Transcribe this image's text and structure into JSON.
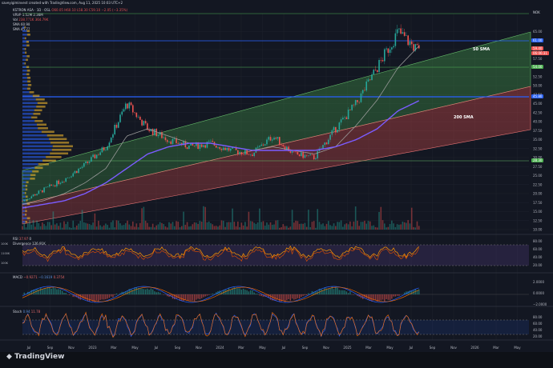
{
  "header": {
    "credit": "saveyigiminvest created with TradingView.com, Aug 11, 2025 10:03 UTC+2",
    "symbol_line": "KSTRON ASA · 1D · OSL",
    "ohlc_line": "O60.05 H60.10 L58.30 C59.10 −2.05 (−3.35%)",
    "vrvp": "VRVP",
    "vrvp_vals": "1.52M 2.36M",
    "vol": "Vol",
    "vol_vals": "238.771K 364.79K",
    "sma": "SMA",
    "sma_val": "60.98",
    "sma2": "SMA",
    "sma2_val": "45.77",
    "currency": "NOK"
  },
  "annotations": {
    "sma50": "50 SMA",
    "sma200": "200 SMA"
  },
  "price_labels": {
    "current": "59.40",
    "current_sub": "06:06:31",
    "line1": "61.00",
    "line2": "54.00",
    "line3": "45.80",
    "line4": "28.30",
    "nok_badge": "NOK"
  },
  "price_axis": [
    "65.00",
    "62.50",
    "60.00",
    "57.50",
    "55.00",
    "52.50",
    "50.00",
    "47.50",
    "45.00",
    "42.50",
    "40.00",
    "37.50",
    "35.00",
    "32.50",
    "30.00",
    "27.50",
    "25.00",
    "22.50",
    "20.00",
    "17.50",
    "15.00",
    "12.50",
    "10.00"
  ],
  "time_axis": [
    "Jul",
    "Sep",
    "Nov",
    "2023",
    "Mar",
    "May",
    "Jul",
    "Sep",
    "Nov",
    "2024",
    "Mar",
    "May",
    "Jul",
    "Sep",
    "Nov",
    "2025",
    "Mar",
    "May",
    "Jul",
    "Sep",
    "Nov",
    "2026",
    "Mar",
    "May"
  ],
  "rsi": {
    "label": "RSI",
    "val1": "37.97",
    "val2": "0",
    "div_label": "Divergence",
    "div_val": "126.91K",
    "axis": [
      "80.00",
      "60.00",
      "40.00",
      "20.00"
    ],
    "left_marks": [
      "100K",
      "1100K",
      "100K"
    ]
  },
  "macd": {
    "label": "MACD",
    "v1": "−0.9271",
    "v2": "−0.1619",
    "v3": "0.3754",
    "axis": [
      "2.0000",
      "0.0000",
      "−2.0000"
    ]
  },
  "stoch": {
    "label": "Stoch",
    "v1": "0.94",
    "v2": "11.78",
    "axis": [
      "80.00",
      "60.00",
      "40.00",
      "20.00"
    ]
  },
  "footer": {
    "brand": "TradingView"
  },
  "colors": {
    "bg": "#131722",
    "up": "#26a69a",
    "down": "#ef5350",
    "sma50": "#9a9a9a",
    "sma200": "#7b5cff",
    "channel_green": "#4caf50",
    "channel_red": "#ef5350",
    "highlight_blue": "#2962ff"
  },
  "chart_data": {
    "type": "line",
    "title": "",
    "xlabel": "",
    "ylabel": "",
    "ylim": [
      10,
      70
    ],
    "x": [
      "2022-07",
      "2022-09",
      "2022-11",
      "2023-01",
      "2023-03",
      "2023-05",
      "2023-07",
      "2023-09",
      "2023-11",
      "2024-01",
      "2024-03",
      "2024-05",
      "2024-07",
      "2024-09",
      "2024-11",
      "2025-01",
      "2025-03",
      "2025-05",
      "2025-07",
      "2025-08"
    ],
    "series": [
      {
        "name": "",
        "values": [
          18,
          21,
          24,
          28,
          33,
          45,
          38,
          35,
          33,
          34,
          32,
          31,
          36,
          31,
          30,
          38,
          45,
          55,
          65,
          59.4
        ]
      },
      {
        "values": [
          17,
          18,
          20,
          23,
          27,
          36,
          38,
          36,
          34,
          34,
          33,
          32,
          33,
          32,
          31,
          33,
          39,
          46,
          55,
          61
        ]
      },
      {
        "values": [
          16,
          17,
          18,
          20,
          23,
          27,
          31,
          33,
          34,
          34,
          33,
          32,
          32,
          32,
          32,
          33,
          35,
          38,
          43,
          45.8
        ]
      }
    ]
  }
}
